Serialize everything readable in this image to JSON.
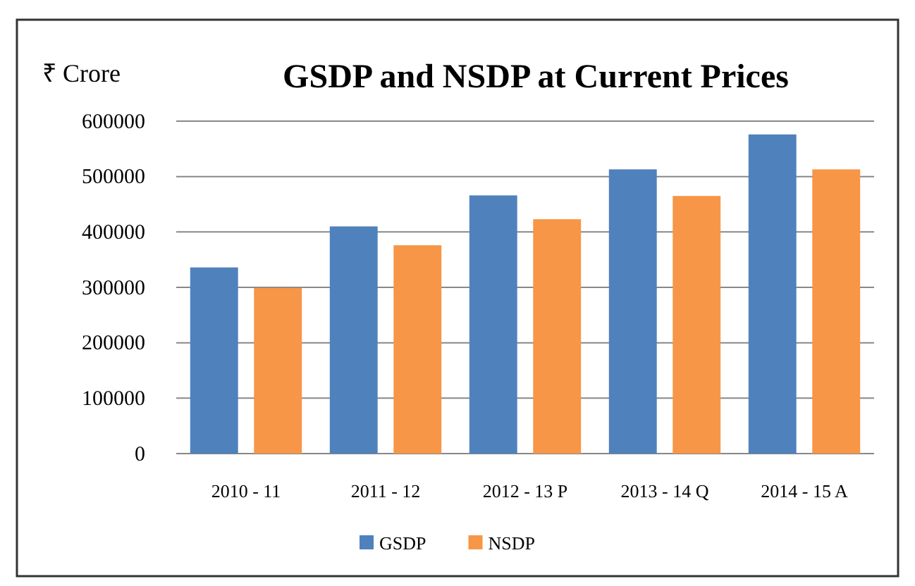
{
  "chart_data": {
    "type": "bar",
    "title": "GSDP and NSDP at Current Prices",
    "ylabel": "₹ Crore",
    "categories": [
      "2010 - 11",
      "2011 - 12",
      "2012 - 13 P",
      "2013 - 14 Q",
      "2014 - 15 A"
    ],
    "series": [
      {
        "name": "GSDP",
        "color": "#4f81bd",
        "values": [
          336000,
          410000,
          466000,
          513000,
          576000
        ]
      },
      {
        "name": "NSDP",
        "color": "#f79646",
        "values": [
          299000,
          376000,
          423000,
          465000,
          513000
        ]
      }
    ],
    "ylim": [
      0,
      600000
    ],
    "yticks": [
      0,
      100000,
      200000,
      300000,
      400000,
      500000,
      600000
    ],
    "grid": "y",
    "legend": "bottom"
  }
}
